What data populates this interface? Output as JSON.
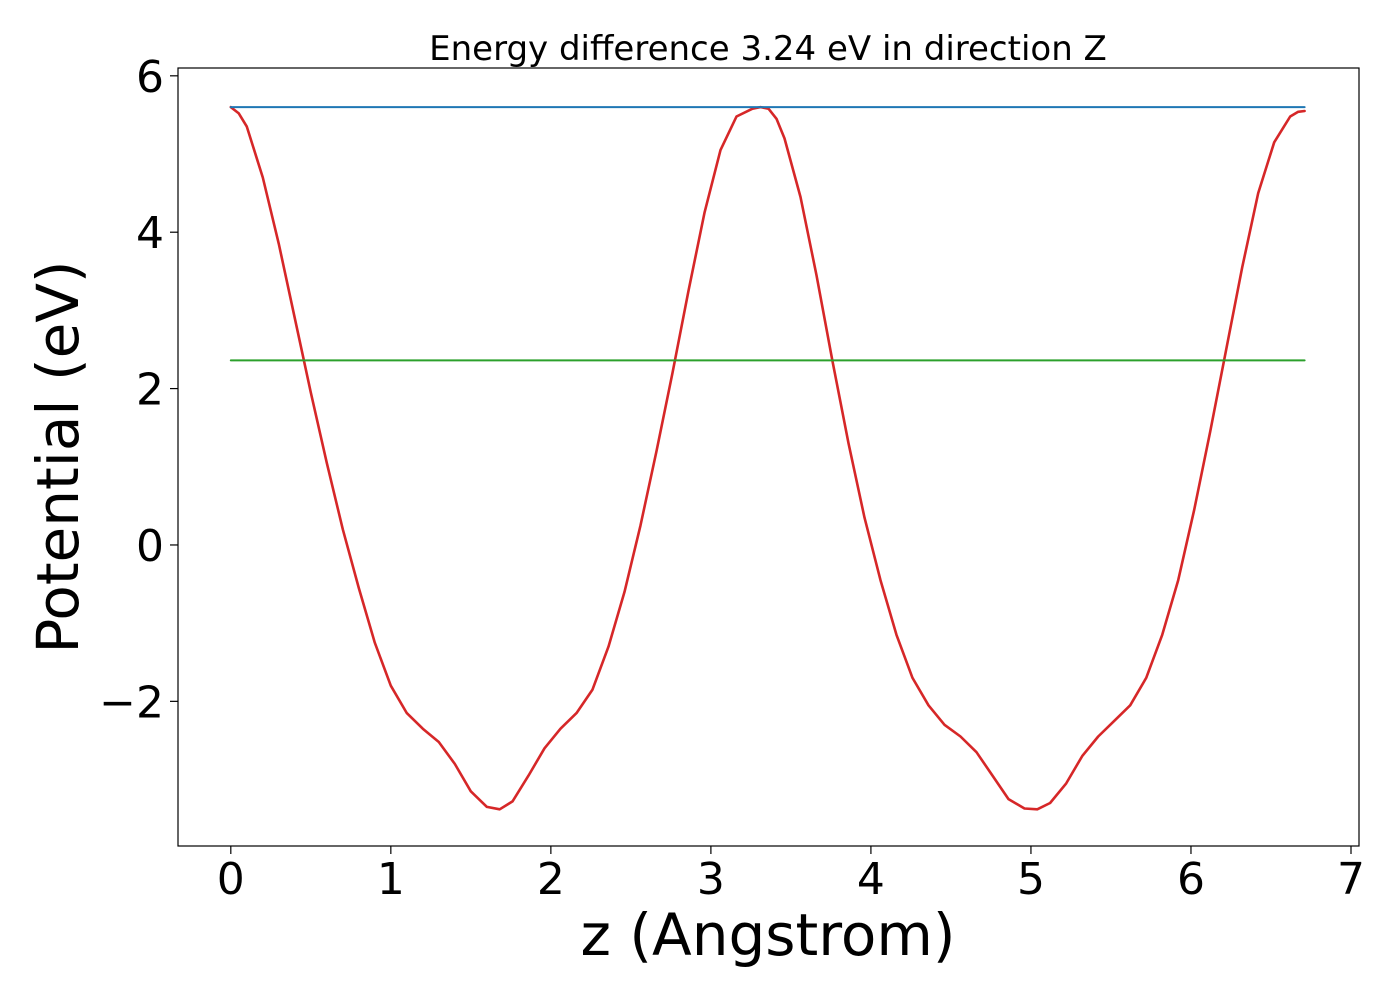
{
  "chart_data": {
    "type": "line",
    "title": "Energy difference 3.24 eV in direction Z",
    "xlabel": "z (Angstrom)",
    "ylabel": "Potential (eV)",
    "xlim": [
      -0.33,
      7.05
    ],
    "ylim": [
      -3.85,
      6.1
    ],
    "xticks": [
      0,
      1,
      2,
      3,
      4,
      5,
      6,
      7
    ],
    "yticks": [
      -2,
      0,
      2,
      4,
      6
    ],
    "ytick_labels": [
      "−2",
      "0",
      "2",
      "4",
      "6"
    ],
    "grid": false,
    "series": [
      {
        "color": "#d62728",
        "x": [
          0.0,
          0.05,
          0.1,
          0.2,
          0.3,
          0.4,
          0.5,
          0.6,
          0.7,
          0.8,
          0.9,
          1.0,
          1.1,
          1.2,
          1.3,
          1.4,
          1.5,
          1.6,
          1.68,
          1.76,
          1.86,
          1.96,
          2.06,
          2.16,
          2.26,
          2.36,
          2.46,
          2.56,
          2.66,
          2.76,
          2.86,
          2.96,
          3.06,
          3.16,
          3.26,
          3.31,
          3.36,
          3.41,
          3.46,
          3.56,
          3.66,
          3.76,
          3.86,
          3.96,
          4.06,
          4.16,
          4.26,
          4.36,
          4.46,
          4.56,
          4.66,
          4.76,
          4.86,
          4.96,
          5.04,
          5.12,
          5.22,
          5.32,
          5.42,
          5.52,
          5.62,
          5.72,
          5.82,
          5.92,
          6.02,
          6.12,
          6.22,
          6.32,
          6.42,
          6.52,
          6.62,
          6.67,
          6.71
        ],
        "y": [
          5.6,
          5.52,
          5.35,
          4.7,
          3.85,
          2.9,
          1.95,
          1.05,
          0.2,
          -0.55,
          -1.25,
          -1.8,
          -2.15,
          -2.35,
          -2.52,
          -2.8,
          -3.15,
          -3.35,
          -3.38,
          -3.28,
          -2.95,
          -2.6,
          -2.35,
          -2.15,
          -1.85,
          -1.3,
          -0.6,
          0.25,
          1.2,
          2.2,
          3.25,
          4.25,
          5.05,
          5.48,
          5.58,
          5.6,
          5.58,
          5.45,
          5.2,
          4.45,
          3.45,
          2.35,
          1.3,
          0.35,
          -0.45,
          -1.15,
          -1.7,
          -2.05,
          -2.3,
          -2.45,
          -2.65,
          -2.95,
          -3.25,
          -3.37,
          -3.38,
          -3.3,
          -3.05,
          -2.7,
          -2.45,
          -2.25,
          -2.05,
          -1.7,
          -1.15,
          -0.45,
          0.45,
          1.45,
          2.5,
          3.55,
          4.5,
          5.15,
          5.48,
          5.54,
          5.55
        ]
      },
      {
        "color": "#1f77b4",
        "x": [
          0.0,
          6.71
        ],
        "y": [
          5.6,
          5.6
        ]
      },
      {
        "color": "#2ca02c",
        "x": [
          0.0,
          6.71
        ],
        "y": [
          2.36,
          2.36
        ]
      }
    ]
  }
}
